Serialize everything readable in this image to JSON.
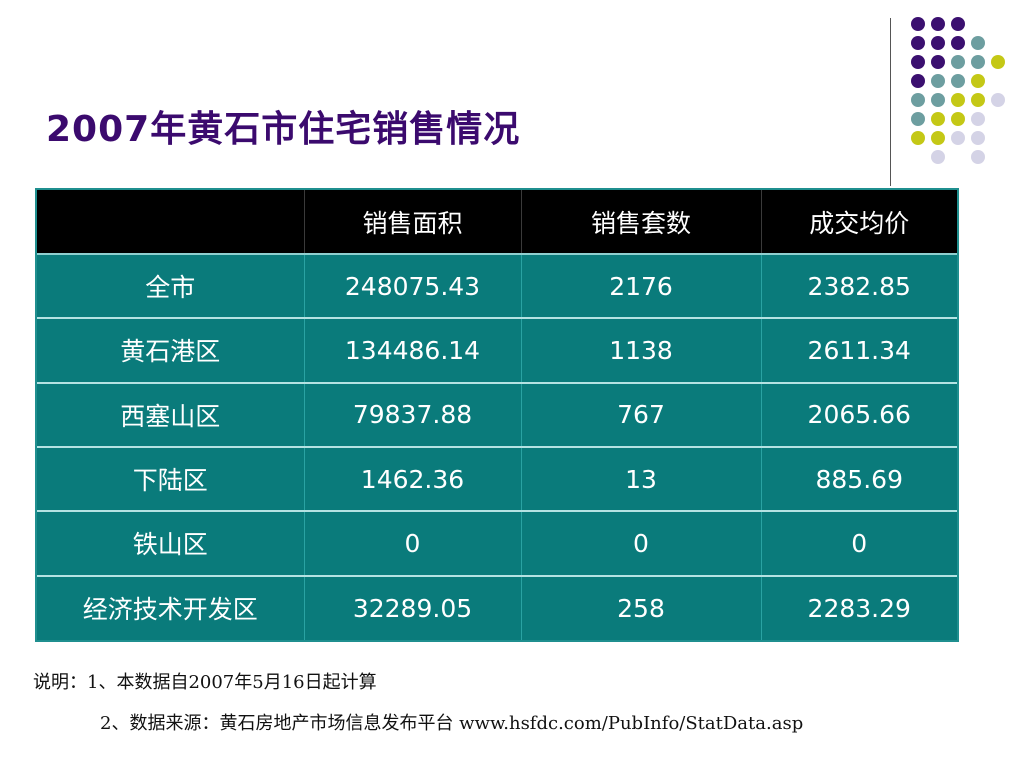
{
  "title": "2007年黄石市住宅销售情况",
  "decoration": {
    "dot_colors": {
      "purple": "#3b1070",
      "teal": "#6d9ea0",
      "lime": "#c4c816",
      "lavender": "#d4d3e6"
    },
    "table_bg": "#0a7b7b",
    "header_bg": "#000000",
    "title_color": "#3b0a6e"
  },
  "table": {
    "headers": [
      "",
      "销售面积",
      "销售套数",
      "成交均价"
    ],
    "rows": [
      [
        "全市",
        "248075.43",
        "2176",
        "2382.85"
      ],
      [
        "黄石港区",
        "134486.14",
        "1138",
        "2611.34"
      ],
      [
        "西塞山区",
        "79837.88",
        "767",
        "2065.66"
      ],
      [
        "下陆区",
        "1462.36",
        "13",
        "885.69"
      ],
      [
        "铁山区",
        "0",
        "0",
        "0"
      ],
      [
        "经济技术开发区",
        "32289.05",
        "258",
        "2283.29"
      ]
    ]
  },
  "notes": {
    "line1": "说明：1、本数据自2007年5月16日起计算",
    "line2": "2、数据来源：黄石房地产市场信息发布平台 www.hsfdc.com/PubInfo/StatData.asp"
  }
}
